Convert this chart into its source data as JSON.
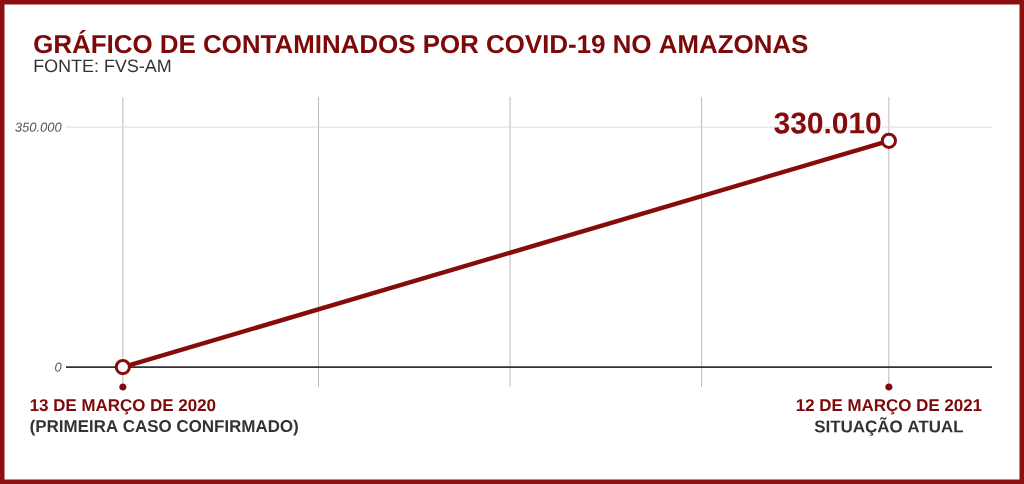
{
  "chart_data": {
    "type": "line",
    "title": "GRÁFICO DE CONTAMINADOS POR COVID-19 NO AMAZONAS",
    "subtitle": "FONTE: FVS-AM",
    "x": [
      "2020-03-13",
      "2021-03-12"
    ],
    "series": [
      {
        "color": "#860b0b",
        "values": [
          0,
          330010
        ],
        "value_labels": [
          null,
          "330.010"
        ]
      }
    ],
    "xlim": [
      "2020-02-15",
      "2021-04-30"
    ],
    "xticks": [
      {
        "value": "2020-03-13",
        "label": "13 DE MARÇO DE 2020"
      },
      {
        "value": "2020-06-14",
        "label": null
      },
      {
        "value": "2020-09-13",
        "label": null
      },
      {
        "value": "2020-12-13",
        "label": null
      },
      {
        "value": "2021-03-12",
        "label": "12 DE MARÇO DE 2021"
      }
    ],
    "ylim": [
      -29000,
      394000
    ],
    "yticks": [
      0,
      {
        "value": 350000,
        "label": "350.000"
      }
    ],
    "annotations": [
      "(PRIMEIRA CASO CONFIRMADO)",
      "SITUAÇÃO ATUAL"
    ],
    "grid": true,
    "marker": "circle",
    "line_style": "solid"
  }
}
